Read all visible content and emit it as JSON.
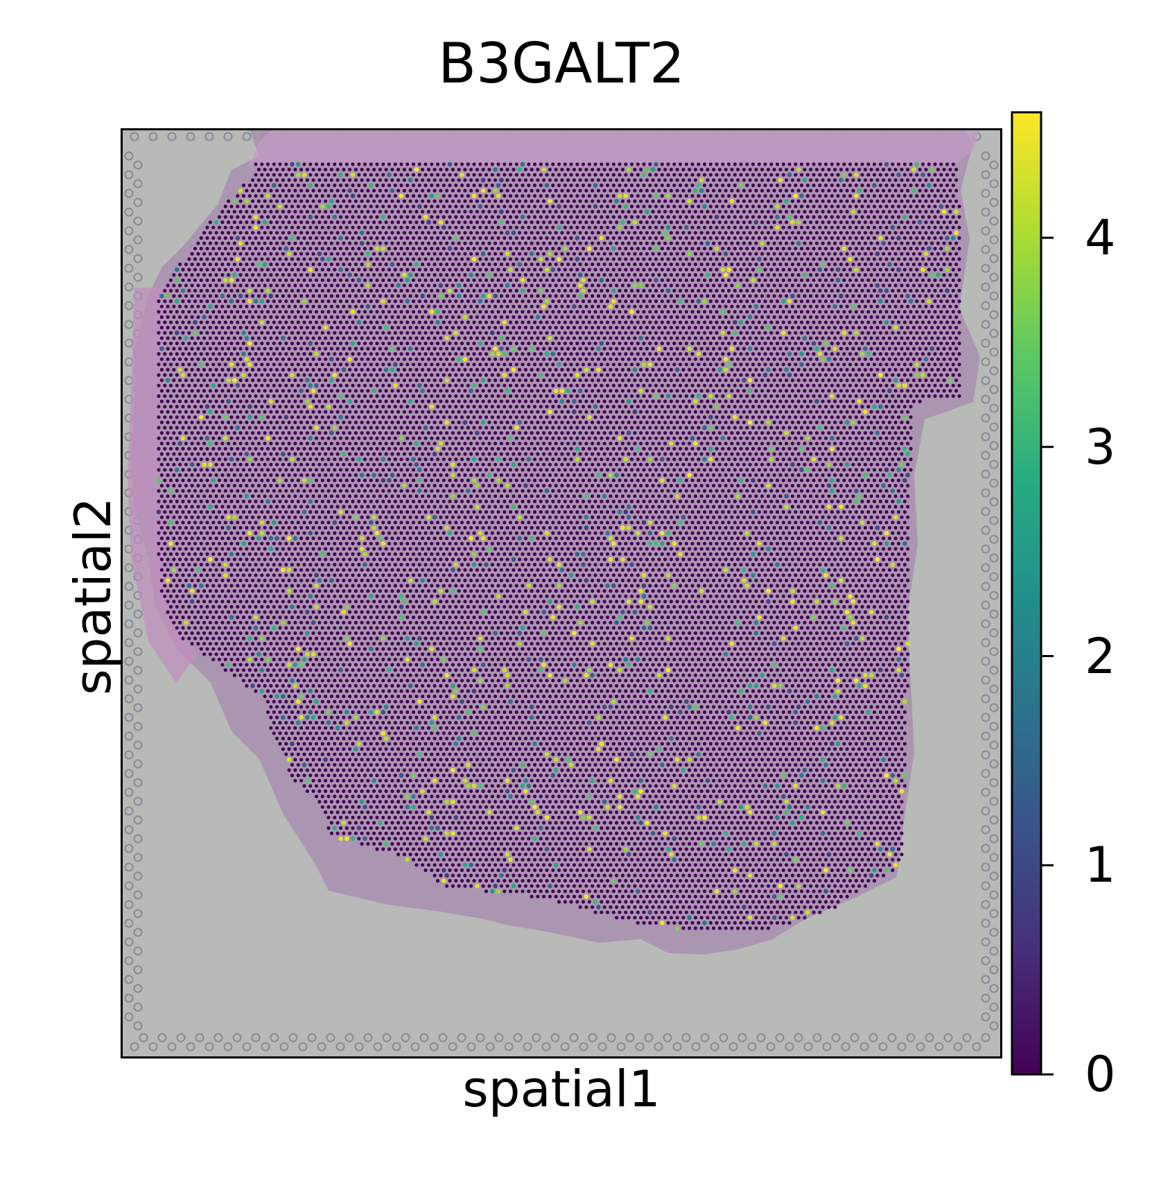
{
  "chart_data": {
    "type": "spatial scatter",
    "title": "B3GALT2",
    "xlabel": "spatial1",
    "ylabel": "spatial2",
    "background": "H&E tissue image",
    "colormap": "viridis",
    "colorbar": {
      "range": [
        0,
        4.6
      ],
      "ticks": [
        0,
        1,
        2,
        3,
        4
      ],
      "tick_labels": [
        "0",
        "1",
        "2",
        "3",
        "4"
      ]
    },
    "x_ticks": "none",
    "y_ticks": "none",
    "grid": false,
    "legend": "colorbar-right"
  }
}
